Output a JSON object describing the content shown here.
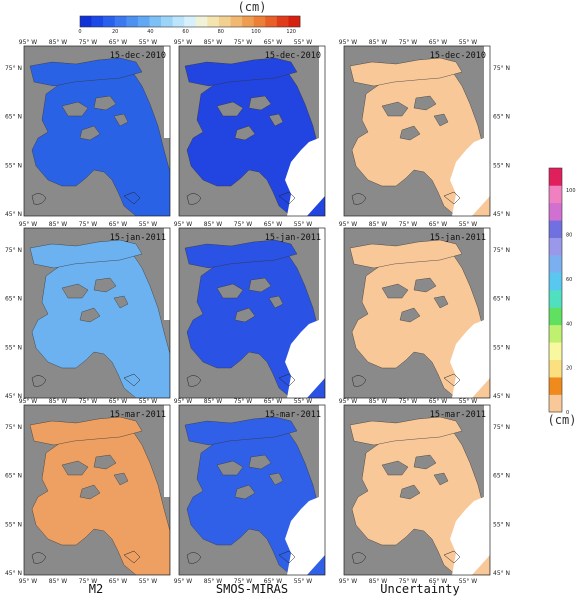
{
  "chart_data": {
    "type": "heatmap",
    "figure_columns": [
      "M2",
      "SMOS-MIRAS",
      "Uncertainty"
    ],
    "dates": [
      "15-dec-2010",
      "15-jan-2011",
      "15-mar-2011"
    ],
    "x_ticks": [
      "95° W",
      "85° W",
      "75° W",
      "65° W",
      "55° W"
    ],
    "y_ticks": [
      "75° N",
      "65° N",
      "55° N",
      "45° N"
    ],
    "thickness_colorbar": {
      "unit": "(cm)",
      "ticks": [
        "0",
        "20",
        "40",
        "60",
        "80",
        "100",
        "120"
      ],
      "range": [
        0,
        125
      ],
      "colors": [
        "#1030d8",
        "#1c48e8",
        "#2a60ee",
        "#3c78f0",
        "#4c90f2",
        "#60a8f4",
        "#7cc0f6",
        "#9cd4f8",
        "#bce4fa",
        "#d8f0fa",
        "#f2f2d8",
        "#f4e4b0",
        "#f2d090",
        "#f0b870",
        "#ee9c50",
        "#ec8038",
        "#e86028",
        "#e03c1c",
        "#d82010"
      ]
    },
    "uncertainty_colorbar": {
      "unit": "(cm)",
      "ticks": [
        "0",
        "20",
        "40",
        "60",
        "80",
        "100"
      ],
      "range": [
        0,
        110
      ],
      "colors": [
        "#f8c898",
        "#f08a1c",
        "#fce080",
        "#f8f8a0",
        "#c0f070",
        "#60e060",
        "#50e0c0",
        "#58c8f0",
        "#7ab0f0",
        "#9a98e8",
        "#7070e0",
        "#d070d0",
        "#f080c0",
        "#e0205c"
      ]
    },
    "panel_fields": [
      [
        "#2a62e6",
        "#2244e0",
        "#f8c898"
      ],
      [
        "#6cb2f0",
        "#2a52e4",
        "#f8c898"
      ],
      [
        "#eda062",
        "#3060e8",
        "#f8c898"
      ]
    ]
  }
}
